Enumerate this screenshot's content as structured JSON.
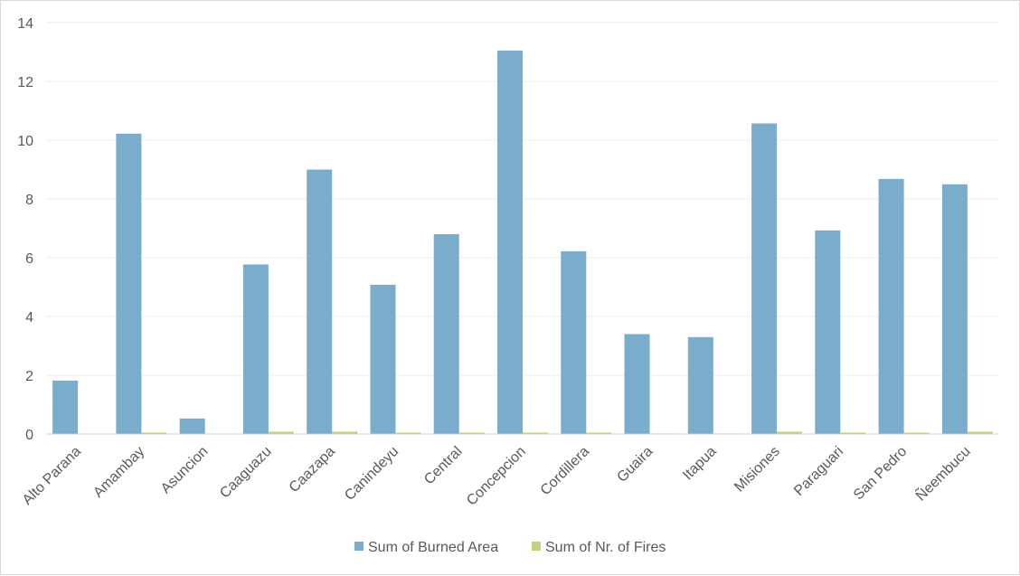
{
  "chart_data": {
    "type": "bar",
    "title": "",
    "xlabel": "",
    "ylabel": "",
    "ylim": [
      0,
      14
    ],
    "yticks": [
      0,
      2,
      4,
      6,
      8,
      10,
      12,
      14
    ],
    "grid": true,
    "legend_position": "bottom",
    "categories": [
      "Alto Parana",
      "Amambay",
      "Asuncion",
      "Caaguazu",
      "Caazapa",
      "Canindeyu",
      "Central",
      "Concepcion",
      "Cordillera",
      "Guaira",
      "Itapua",
      "Misiones",
      "Paraguari",
      "San Pedro",
      "Ñeembucu"
    ],
    "series": [
      {
        "name": "Sum of Burned Area",
        "color": "#7aaccc",
        "values": [
          1.82,
          10.22,
          0.53,
          5.77,
          9.0,
          5.08,
          6.8,
          13.05,
          6.22,
          3.4,
          3.3,
          10.57,
          6.93,
          8.68,
          8.5
        ]
      },
      {
        "name": "Sum of Nr. of Fires",
        "color": "#c3d17a",
        "values": [
          0.01,
          0.05,
          0.01,
          0.08,
          0.08,
          0.05,
          0.05,
          0.05,
          0.05,
          0.02,
          0.02,
          0.08,
          0.05,
          0.05,
          0.08
        ]
      }
    ]
  }
}
